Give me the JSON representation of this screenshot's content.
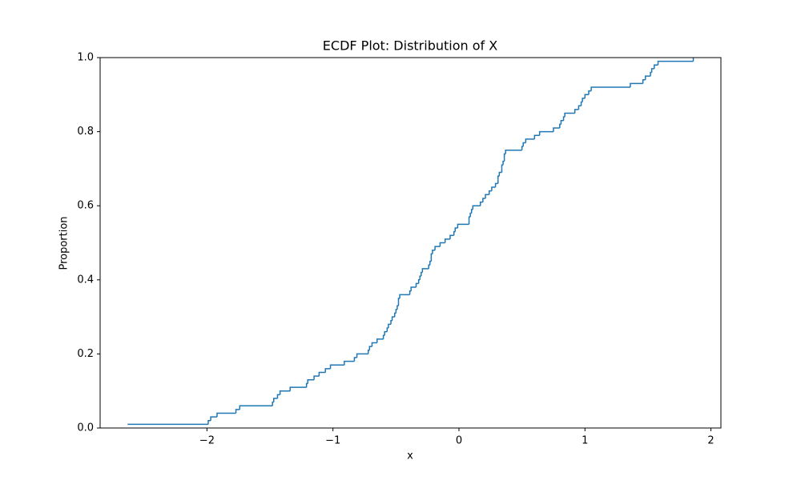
{
  "chart_data": {
    "type": "ecdf",
    "title": "ECDF Plot: Distribution of X",
    "x_label": "x",
    "y_label": "Proportion",
    "series": [
      {
        "color": "#1f77b4",
        "x": [
          -2.63,
          -1.99,
          -1.97,
          -1.92,
          -1.77,
          -1.74,
          -1.48,
          -1.47,
          -1.44,
          -1.42,
          -1.34,
          -1.21,
          -1.2,
          -1.15,
          -1.11,
          -1.06,
          -1.02,
          -0.91,
          -0.83,
          -0.81,
          -0.72,
          -0.71,
          -0.69,
          -0.65,
          -0.6,
          -0.59,
          -0.57,
          -0.56,
          -0.54,
          -0.53,
          -0.51,
          -0.5,
          -0.49,
          -0.48,
          -0.48,
          -0.47,
          -0.39,
          -0.38,
          -0.34,
          -0.32,
          -0.31,
          -0.3,
          -0.29,
          -0.24,
          -0.23,
          -0.22,
          -0.22,
          -0.21,
          -0.19,
          -0.15,
          -0.11,
          -0.07,
          -0.04,
          -0.03,
          -0.01,
          0.08,
          0.08,
          0.09,
          0.1,
          0.11,
          0.17,
          0.19,
          0.21,
          0.24,
          0.26,
          0.29,
          0.31,
          0.31,
          0.32,
          0.34,
          0.34,
          0.35,
          0.36,
          0.36,
          0.37,
          0.5,
          0.51,
          0.53,
          0.6,
          0.64,
          0.75,
          0.8,
          0.81,
          0.83,
          0.84,
          0.92,
          0.95,
          0.97,
          0.98,
          1.0,
          1.03,
          1.05,
          1.36,
          1.46,
          1.48,
          1.52,
          1.53,
          1.55,
          1.58,
          1.86
        ],
        "values": [
          0.01,
          0.02,
          0.03,
          0.04,
          0.05,
          0.06,
          0.07,
          0.08,
          0.09,
          0.1,
          0.11,
          0.12,
          0.13,
          0.14,
          0.15,
          0.16,
          0.17,
          0.18,
          0.19,
          0.2,
          0.21,
          0.22,
          0.23,
          0.24,
          0.25,
          0.26,
          0.27,
          0.28,
          0.29,
          0.3,
          0.31,
          0.32,
          0.33,
          0.34,
          0.35,
          0.36,
          0.37,
          0.38,
          0.39,
          0.4,
          0.41,
          0.42,
          0.43,
          0.44,
          0.45,
          0.46,
          0.47,
          0.48,
          0.49,
          0.5,
          0.51,
          0.52,
          0.53,
          0.54,
          0.55,
          0.56,
          0.57,
          0.58,
          0.59,
          0.6,
          0.61,
          0.62,
          0.63,
          0.64,
          0.65,
          0.66,
          0.67,
          0.68,
          0.69,
          0.7,
          0.71,
          0.72,
          0.73,
          0.74,
          0.75,
          0.76,
          0.77,
          0.78,
          0.79,
          0.8,
          0.81,
          0.82,
          0.83,
          0.84,
          0.85,
          0.86,
          0.87,
          0.88,
          0.89,
          0.9,
          0.91,
          0.92,
          0.93,
          0.94,
          0.95,
          0.96,
          0.97,
          0.98,
          0.99,
          1.0
        ]
      }
    ],
    "xlim": [
      -2.848,
      2.079
    ],
    "ylim": [
      0,
      1
    ],
    "xticks": [
      {
        "value": -2,
        "label": "−2"
      },
      {
        "value": -1,
        "label": "−1"
      },
      0,
      1,
      2
    ],
    "yticks": [
      {
        "value": 0,
        "label": "0.0"
      },
      {
        "value": 0.2,
        "label": "0.2"
      },
      {
        "value": 0.4,
        "label": "0.4"
      },
      {
        "value": 0.6,
        "label": "0.6"
      },
      {
        "value": 0.8,
        "label": "0.8"
      },
      {
        "value": 1,
        "label": "1.0"
      }
    ]
  }
}
